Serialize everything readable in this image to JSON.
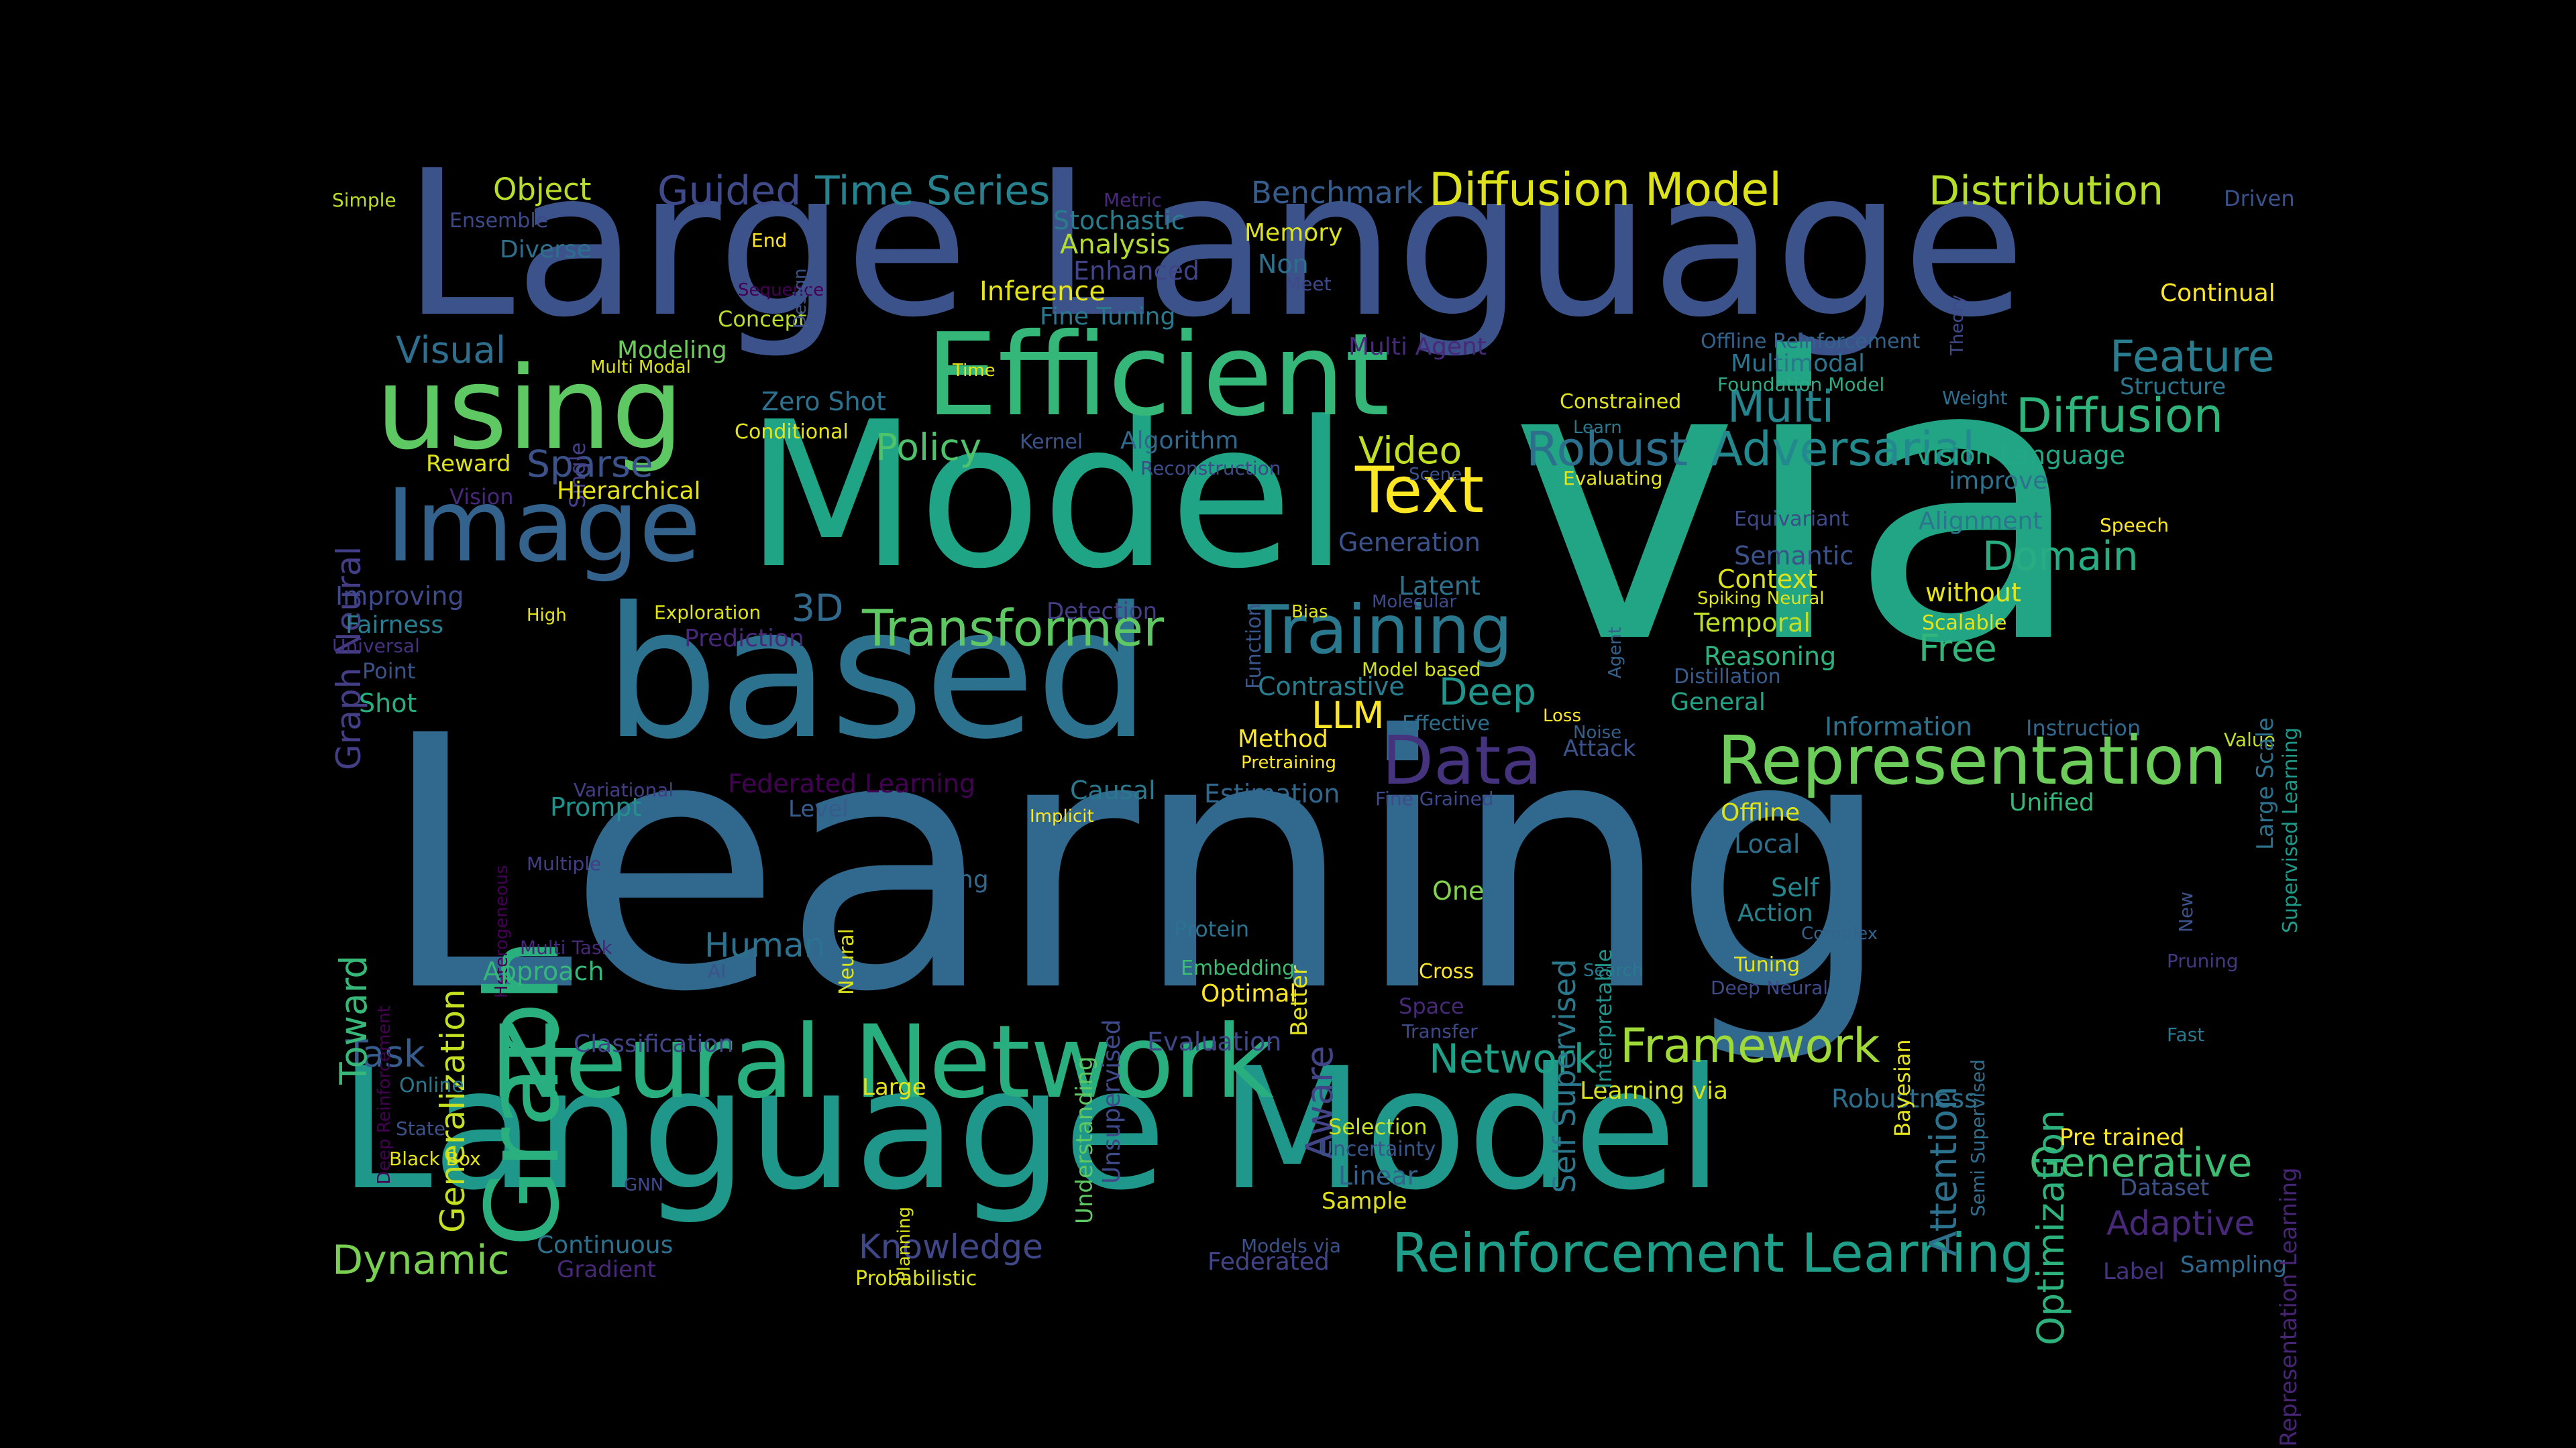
{
  "words": [
    {
      "text": "Large Language",
      "color": "#3b528b"
    },
    {
      "text": "Learning",
      "color": "#31688e"
    },
    {
      "text": "via",
      "color": "#21a585"
    },
    {
      "text": "based",
      "color": "#2c728e"
    },
    {
      "text": "Model",
      "color": "#20a486"
    },
    {
      "text": "Language Model",
      "color": "#1f988b"
    },
    {
      "text": "Efficient",
      "color": "#35b779"
    },
    {
      "text": "using",
      "color": "#5ec962"
    },
    {
      "text": "Image",
      "color": "#33638d"
    },
    {
      "text": "Graph",
      "color": "#2ab07f"
    },
    {
      "text": "Neural Network",
      "color": "#29af7f"
    },
    {
      "text": "Representation",
      "color": "#6ccd5a"
    },
    {
      "text": "Training",
      "color": "#2a788e"
    },
    {
      "text": "Data",
      "color": "#46337e"
    },
    {
      "text": "Text",
      "color": "#fde725"
    },
    {
      "text": "Diffusion Model",
      "color": "#dde318"
    },
    {
      "text": "Distribution",
      "color": "#b5de2b"
    },
    {
      "text": "Time Series",
      "color": "#26828e"
    },
    {
      "text": "Guided",
      "color": "#3e4a89"
    },
    {
      "text": "Object",
      "color": "#b8de29"
    },
    {
      "text": "Benchmark",
      "color": "#365c8d"
    },
    {
      "text": "Reinforcement Learning",
      "color": "#1f9e89"
    },
    {
      "text": "Transformer",
      "color": "#5ec962"
    },
    {
      "text": "Framework",
      "color": "#a0da39"
    },
    {
      "text": "Adversarial",
      "color": "#23898e"
    },
    {
      "text": "Diffusion",
      "color": "#2fb47c"
    },
    {
      "text": "Robust",
      "color": "#2d708e"
    },
    {
      "text": "Feature",
      "color": "#287d8e"
    },
    {
      "text": "Multi",
      "color": "#25858e"
    },
    {
      "text": "Video",
      "color": "#c2df23"
    },
    {
      "text": "Policy",
      "color": "#4ec36b"
    },
    {
      "text": "Visual",
      "color": "#2e6e8e"
    },
    {
      "text": "Sparse",
      "color": "#3b528b"
    },
    {
      "text": "Network",
      "color": "#1fa088"
    },
    {
      "text": "Domain",
      "color": "#27ad81"
    },
    {
      "text": "Generative",
      "color": "#3dbc74"
    },
    {
      "text": "Dynamic",
      "color": "#7ad151"
    },
    {
      "text": "Optimization",
      "color": "#2db27d"
    },
    {
      "text": "Attention",
      "color": "#2c728e"
    },
    {
      "text": "Adaptive",
      "color": "#482878"
    },
    {
      "text": "3D",
      "color": "#306a8e"
    },
    {
      "text": "LLM",
      "color": "#fde725"
    },
    {
      "text": "Deep",
      "color": "#1f968b"
    },
    {
      "text": "Task",
      "color": "#365d8d"
    },
    {
      "text": "Toward",
      "color": "#37b878"
    },
    {
      "text": "Knowledge",
      "color": "#3f4788"
    },
    {
      "text": "Aware",
      "color": "#414487"
    },
    {
      "text": "Human",
      "color": "#2c728e"
    },
    {
      "text": "Generalization",
      "color": "#c5e021"
    },
    {
      "text": "Graph Neural",
      "color": "#433e85"
    },
    {
      "text": "Free",
      "color": "#32b67a"
    },
    {
      "text": "Self Supervised",
      "color": "#2a788e"
    },
    {
      "text": "Inference",
      "color": "#e5e419"
    },
    {
      "text": "Analysis",
      "color": "#b2dd2d"
    },
    {
      "text": "Stochastic",
      "color": "#287c8e"
    },
    {
      "text": "Memory",
      "color": "#dde318"
    },
    {
      "text": "Enhanced",
      "color": "#414487"
    },
    {
      "text": "Non",
      "color": "#2e6f8e"
    },
    {
      "text": "Diverse",
      "color": "#2d708e"
    },
    {
      "text": "Ensemble",
      "color": "#3e4989"
    },
    {
      "text": "Simple",
      "color": "#bade28"
    },
    {
      "text": "Driven",
      "color": "#3b528b"
    },
    {
      "text": "Continual",
      "color": "#fde725"
    },
    {
      "text": "Offline Reinforcement",
      "color": "#33638d"
    },
    {
      "text": "Multimodal",
      "color": "#2b758e"
    },
    {
      "text": "Structure",
      "color": "#2a768e"
    },
    {
      "text": "Vision Language",
      "color": "#22a884"
    },
    {
      "text": "improve",
      "color": "#2c728e"
    },
    {
      "text": "Alignment",
      "color": "#2b758e"
    },
    {
      "text": "Speech",
      "color": "#fde725"
    },
    {
      "text": "Semantic",
      "color": "#3b528b"
    },
    {
      "text": "Context",
      "color": "#dde318"
    },
    {
      "text": "without",
      "color": "#e7e419"
    },
    {
      "text": "Temporal",
      "color": "#c0df25"
    },
    {
      "text": "Scalable",
      "color": "#e2e418"
    },
    {
      "text": "Reasoning",
      "color": "#2db27d"
    },
    {
      "text": "Distillation",
      "color": "#365d8d"
    },
    {
      "text": "General",
      "color": "#20a386"
    },
    {
      "text": "Information",
      "color": "#2c728e"
    },
    {
      "text": "Instruction",
      "color": "#31688e"
    },
    {
      "text": "Value",
      "color": "#c2df23"
    },
    {
      "text": "Unified",
      "color": "#35b779"
    },
    {
      "text": "Offline",
      "color": "#dde318"
    },
    {
      "text": "Local",
      "color": "#2d708e"
    },
    {
      "text": "Self",
      "color": "#24868e"
    },
    {
      "text": "Action",
      "color": "#25838e"
    },
    {
      "text": "Complex",
      "color": "#32648e"
    },
    {
      "text": "Tuning",
      "color": "#e5e419"
    },
    {
      "text": "Deep Neural",
      "color": "#3e4a89"
    },
    {
      "text": "Pre trained",
      "color": "#fde725"
    },
    {
      "text": "Robustness",
      "color": "#2d708e"
    },
    {
      "text": "Learning via",
      "color": "#d8e219"
    },
    {
      "text": "Dataset",
      "color": "#3b528b"
    },
    {
      "text": "Label",
      "color": "#46327e"
    },
    {
      "text": "Sampling",
      "color": "#31688e"
    },
    {
      "text": "Fast",
      "color": "#2a788e"
    },
    {
      "text": "Pruning",
      "color": "#453781"
    },
    {
      "text": "New",
      "color": "#3b528b"
    },
    {
      "text": "Large Scale",
      "color": "#2c728e"
    },
    {
      "text": "Supervised Learning",
      "color": "#1f998a"
    },
    {
      "text": "Representation Learning",
      "color": "#482475"
    },
    {
      "text": "Semi Supervised",
      "color": "#2e6e8e"
    },
    {
      "text": "Bayesian",
      "color": "#e5e419"
    },
    {
      "text": "Search",
      "color": "#2a788e"
    },
    {
      "text": "Interpretable",
      "color": "#21918c"
    },
    {
      "text": "Cross",
      "color": "#fde725"
    },
    {
      "text": "Space",
      "color": "#482878"
    },
    {
      "text": "Transfer",
      "color": "#3e4a89"
    },
    {
      "text": "One",
      "color": "#84d44b"
    },
    {
      "text": "Selection",
      "color": "#c8e020"
    },
    {
      "text": "Uncertainty",
      "color": "#39568c"
    },
    {
      "text": "Linear",
      "color": "#33638d"
    },
    {
      "text": "Sample",
      "color": "#e2e418"
    },
    {
      "text": "Models via",
      "color": "#3b528b"
    },
    {
      "text": "Federated",
      "color": "#414487"
    },
    {
      "text": "Evaluation",
      "color": "#3f4788"
    },
    {
      "text": "Optimal",
      "color": "#fde725"
    },
    {
      "text": "Embedding",
      "color": "#3dbc74"
    },
    {
      "text": "Better",
      "color": "#e5e419"
    },
    {
      "text": "Protein",
      "color": "#2c728e"
    },
    {
      "text": "Unsupervised",
      "color": "#3e4a89"
    },
    {
      "text": "Understanding",
      "color": "#5ec962"
    },
    {
      "text": "Enhancing",
      "color": "#31688e"
    },
    {
      "text": "Neural",
      "color": "#dde318"
    },
    {
      "text": "AI",
      "color": "#3b528b"
    },
    {
      "text": "Implicit",
      "color": "#fde725"
    },
    {
      "text": "Causal",
      "color": "#2a788e"
    },
    {
      "text": "Level",
      "color": "#365c8d"
    },
    {
      "text": "Estimation",
      "color": "#31688e"
    },
    {
      "text": "Fine Grained",
      "color": "#3e4a89"
    },
    {
      "text": "Federated Learning",
      "color": "#440154"
    },
    {
      "text": "Prompt",
      "color": "#21918c"
    },
    {
      "text": "Variational",
      "color": "#433e85"
    },
    {
      "text": "Method",
      "color": "#fde725"
    },
    {
      "text": "Pretraining",
      "color": "#fde725"
    },
    {
      "text": "Attack",
      "color": "#3b528b"
    },
    {
      "text": "Noise",
      "color": "#34618d"
    },
    {
      "text": "Loss",
      "color": "#fde725"
    },
    {
      "text": "Effective",
      "color": "#2d708e"
    },
    {
      "text": "Model based",
      "color": "#d2e21b"
    },
    {
      "text": "Contrastive",
      "color": "#287d8e"
    },
    {
      "text": "Bias",
      "color": "#dde318"
    },
    {
      "text": "Molecular",
      "color": "#3e4a89"
    },
    {
      "text": "Latent",
      "color": "#2c728e"
    },
    {
      "text": "Spiking Neural",
      "color": "#dde318"
    },
    {
      "text": "Agent",
      "color": "#33638d"
    },
    {
      "text": "Function",
      "color": "#39568c"
    },
    {
      "text": "Generation",
      "color": "#3b528b"
    },
    {
      "text": "Equivariant",
      "color": "#3e4a89"
    },
    {
      "text": "Evaluating",
      "color": "#e5e419"
    },
    {
      "text": "Learn",
      "color": "#2a788e"
    },
    {
      "text": "Weight",
      "color": "#2e6e8e"
    },
    {
      "text": "Constrained",
      "color": "#dde318"
    },
    {
      "text": "Foundation Model",
      "color": "#30a884"
    },
    {
      "text": "Multi Agent",
      "color": "#482878"
    },
    {
      "text": "Time",
      "color": "#e5e419"
    },
    {
      "text": "Fine Tuning",
      "color": "#2a788e"
    },
    {
      "text": "Concept",
      "color": "#bade28"
    },
    {
      "text": "Sequence",
      "color": "#440154"
    },
    {
      "text": "Meet",
      "color": "#3e4a89"
    },
    {
      "text": "Metric",
      "color": "#482878"
    },
    {
      "text": "End",
      "color": "#fde725"
    },
    {
      "text": "Design",
      "color": "#3b528b"
    },
    {
      "text": "Theory",
      "color": "#3e4a89"
    },
    {
      "text": "Zero Shot",
      "color": "#2c728e"
    },
    {
      "text": "Conditional",
      "color": "#e5e419"
    },
    {
      "text": "Modeling",
      "color": "#6ccd5a"
    },
    {
      "text": "Multi Modal",
      "color": "#dde318"
    },
    {
      "text": "Single",
      "color": "#433e85"
    },
    {
      "text": "Kernel",
      "color": "#3b528b"
    },
    {
      "text": "Algorithm",
      "color": "#31688e"
    },
    {
      "text": "Reconstruction",
      "color": "#3e4a89"
    },
    {
      "text": "Scene",
      "color": "#3b528b"
    },
    {
      "text": "Detection",
      "color": "#433e85"
    },
    {
      "text": "Reward",
      "color": "#dde318"
    },
    {
      "text": "Vision",
      "color": "#482878"
    },
    {
      "text": "Hierarchical",
      "color": "#e5e419"
    },
    {
      "text": "Improving",
      "color": "#3e4a89"
    },
    {
      "text": "Fairness",
      "color": "#287d8e"
    },
    {
      "text": "High",
      "color": "#e5e419"
    },
    {
      "text": "Universal",
      "color": "#46327e"
    },
    {
      "text": "Exploration",
      "color": "#dde318"
    },
    {
      "text": "Prediction",
      "color": "#482878"
    },
    {
      "text": "Point",
      "color": "#3b528b"
    },
    {
      "text": "Shot",
      "color": "#27ad81"
    },
    {
      "text": "Heterogeneous",
      "color": "#440154"
    },
    {
      "text": "Deep Reinforcement",
      "color": "#440154"
    },
    {
      "text": "Multiple",
      "color": "#433e85"
    },
    {
      "text": "Multi Task",
      "color": "#482878"
    },
    {
      "text": "Approach",
      "color": "#35b779"
    },
    {
      "text": "Classification",
      "color": "#414487"
    },
    {
      "text": "Online",
      "color": "#2a788e"
    },
    {
      "text": "Large",
      "color": "#e5e419"
    },
    {
      "text": "State",
      "color": "#3b528b"
    },
    {
      "text": "Black Box",
      "color": "#e5e419"
    },
    {
      "text": "GNN",
      "color": "#3e4a89"
    },
    {
      "text": "Planning",
      "color": "#dde318"
    },
    {
      "text": "Continuous",
      "color": "#2c728e"
    },
    {
      "text": "Gradient",
      "color": "#482878"
    },
    {
      "text": "Probabilistic",
      "color": "#dde318"
    }
  ]
}
